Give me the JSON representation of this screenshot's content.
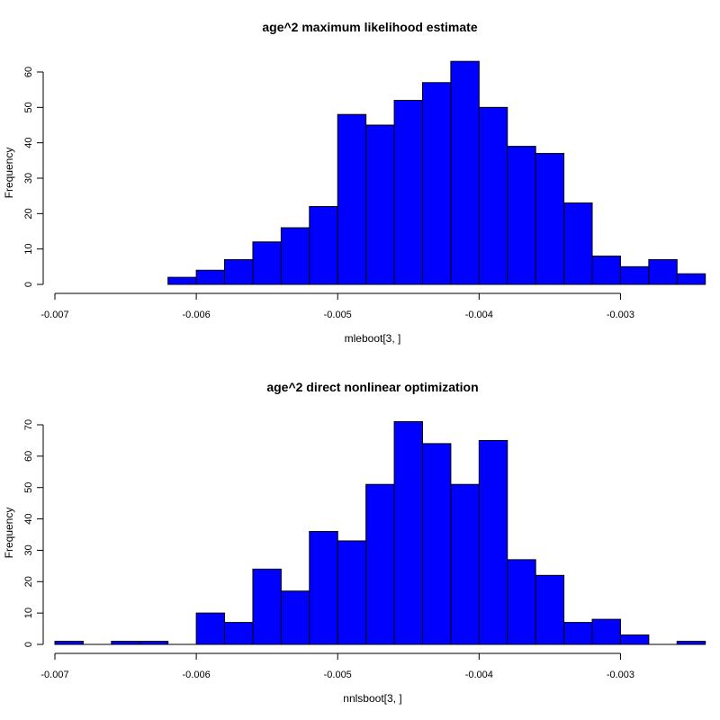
{
  "colors": {
    "bar_fill": "#0000ff",
    "bar_stroke": "#000000",
    "background": "#ffffff"
  },
  "chart_data": [
    {
      "type": "bar",
      "title": "age^2 maximum likelihood estimate",
      "xlabel": "mleboot[3, ]",
      "ylabel": "Frequency",
      "xlim": [
        -0.007,
        -0.0025
      ],
      "ylim": [
        0,
        63
      ],
      "x_ticks": [
        -0.007,
        -0.006,
        -0.005,
        -0.004,
        -0.003
      ],
      "x_tick_labels": [
        "-0.007",
        "-0.006",
        "-0.005",
        "-0.004",
        "-0.003"
      ],
      "y_ticks": [
        0,
        10,
        20,
        30,
        40,
        50,
        60
      ],
      "y_tick_labels": [
        "0",
        "10",
        "20",
        "30",
        "40",
        "50",
        "60"
      ],
      "bin_width": 0.0002,
      "bin_starts": [
        -0.0062,
        -0.006,
        -0.0058,
        -0.0056,
        -0.0054,
        -0.0052,
        -0.005,
        -0.0048,
        -0.0046,
        -0.0044,
        -0.0042,
        -0.004,
        -0.0038,
        -0.0036,
        -0.0034,
        -0.0032,
        -0.003,
        -0.0028,
        -0.0026
      ],
      "values": [
        2,
        4,
        7,
        12,
        16,
        22,
        48,
        45,
        52,
        57,
        63,
        50,
        39,
        37,
        23,
        8,
        5,
        7,
        3
      ]
    },
    {
      "type": "bar",
      "title": "age^2 direct nonlinear optimization",
      "xlabel": "nnlsboot[3, ]",
      "ylabel": "Frequency",
      "xlim": [
        -0.007,
        -0.0025
      ],
      "ylim": [
        0,
        71
      ],
      "x_ticks": [
        -0.007,
        -0.006,
        -0.005,
        -0.004,
        -0.003
      ],
      "x_tick_labels": [
        "-0.007",
        "-0.006",
        "-0.005",
        "-0.004",
        "-0.003"
      ],
      "y_ticks": [
        0,
        10,
        20,
        30,
        40,
        50,
        60,
        70
      ],
      "y_tick_labels": [
        "0",
        "10",
        "20",
        "30",
        "40",
        "50",
        "60",
        "70"
      ],
      "bin_width": 0.0002,
      "bin_starts": [
        -0.007,
        -0.0068,
        -0.0066,
        -0.0064,
        -0.0062,
        -0.006,
        -0.0058,
        -0.0056,
        -0.0054,
        -0.0052,
        -0.005,
        -0.0048,
        -0.0046,
        -0.0044,
        -0.0042,
        -0.004,
        -0.0038,
        -0.0036,
        -0.0034,
        -0.0032,
        -0.003,
        -0.0028,
        -0.0026
      ],
      "values": [
        1,
        0,
        1,
        1,
        0,
        10,
        7,
        24,
        17,
        36,
        33,
        51,
        71,
        64,
        51,
        65,
        27,
        22,
        7,
        8,
        3,
        0,
        1
      ]
    }
  ]
}
